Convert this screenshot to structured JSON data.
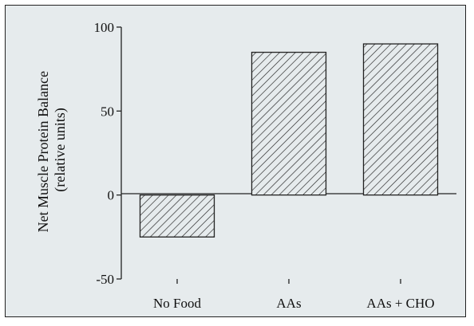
{
  "chart_data": {
    "type": "bar",
    "categories": [
      "No Food",
      "AAs",
      "AAs + CHO"
    ],
    "values": [
      -25,
      85,
      90
    ],
    "ylabel_line1": "Net Muscle Protein Balance",
    "ylabel_line2": "(relative units)",
    "xlabel": "",
    "title": "",
    "ylim": [
      -50,
      100
    ],
    "yticks": [
      -50,
      0,
      50,
      100
    ],
    "yticks_labels": [
      "-50",
      "0",
      "50",
      "100"
    ],
    "bar_fill": "hatched",
    "legend": "none",
    "grid": false
  },
  "colors": {
    "panel_background": "#e6ebed",
    "bar_face": "#e6ebed",
    "bar_hatch": "#222222",
    "axis": "#222222"
  }
}
